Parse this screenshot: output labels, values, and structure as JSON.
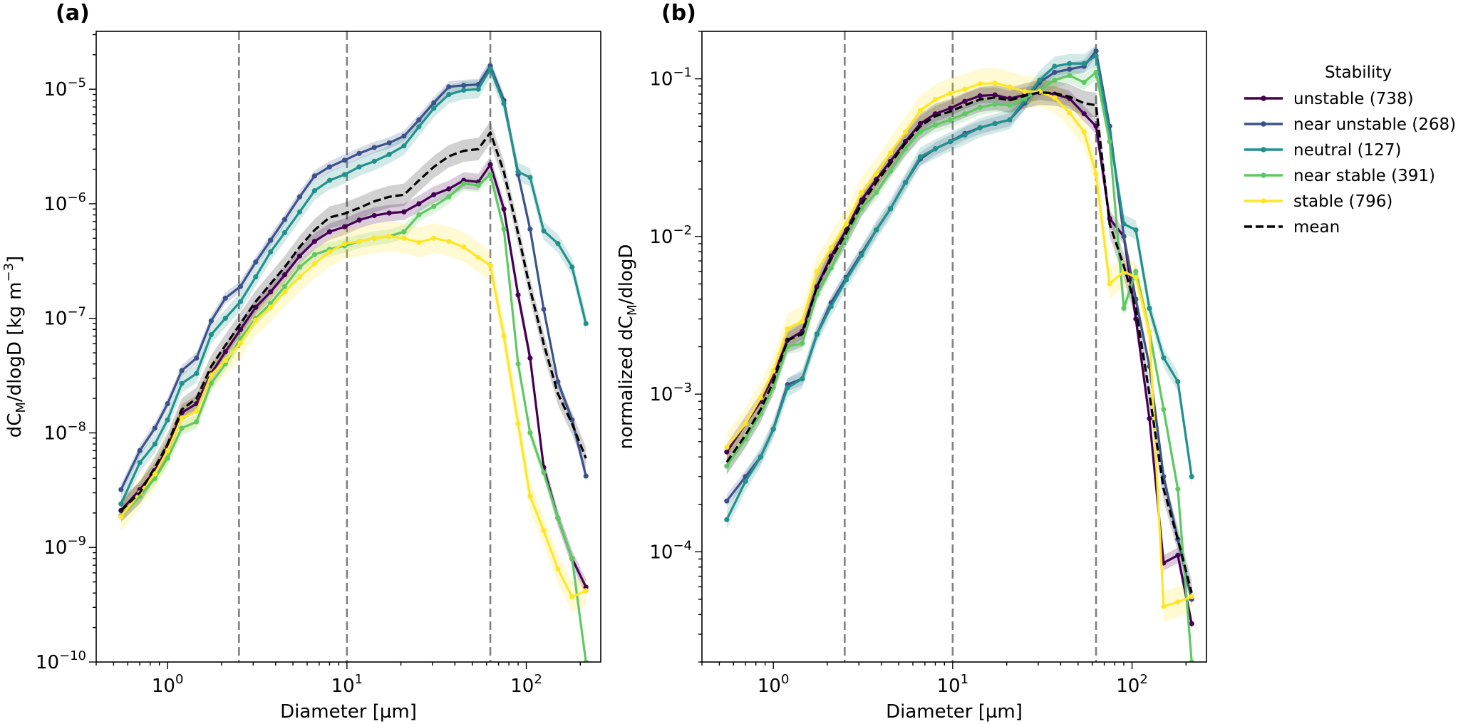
{
  "figure": {
    "panel_a_label": "(a)",
    "panel_b_label": "(b)"
  },
  "legend": {
    "title": "Stability",
    "location": "right of panel (b), top",
    "entries": [
      {
        "label": "unstable  (738)",
        "color": "#440154",
        "dashed": false
      },
      {
        "label": "near unstable  (268)",
        "color": "#3b528b",
        "dashed": false
      },
      {
        "label": "neutral  (127)",
        "color": "#21918c",
        "dashed": false
      },
      {
        "label": "near stable  (391)",
        "color": "#5ec962",
        "dashed": false
      },
      {
        "label": "stable  (796)",
        "color": "#fde725",
        "dashed": false
      },
      {
        "label": "mean",
        "color": "#000000",
        "dashed": true
      }
    ]
  },
  "chart_data": [
    {
      "type": "line",
      "panel": "(a)",
      "xlabel": "Diameter [µm]",
      "ylabel_parts": [
        "dC",
        "M",
        "/dlogD  [kg m",
        "−3",
        "]"
      ],
      "xscale": "log",
      "yscale": "log",
      "xlim": [
        0.4,
        260
      ],
      "ylim": [
        1e-10,
        3.2e-05
      ],
      "xticks": [
        {
          "base": "10",
          "exp": "0",
          "value": 1
        },
        {
          "base": "10",
          "exp": "1",
          "value": 10
        },
        {
          "base": "10",
          "exp": "2",
          "value": 100
        }
      ],
      "yticks": [
        {
          "base": "10",
          "exp": "−10",
          "value": 1e-10
        },
        {
          "base": "10",
          "exp": "−9",
          "value": 1e-09
        },
        {
          "base": "10",
          "exp": "−8",
          "value": 1e-08
        },
        {
          "base": "10",
          "exp": "−7",
          "value": 1e-07
        },
        {
          "base": "10",
          "exp": "−6",
          "value": 1e-06
        },
        {
          "base": "10",
          "exp": "−5",
          "value": 1e-05
        }
      ],
      "vlines": [
        2.5,
        10,
        63
      ],
      "x": [
        0.55,
        0.7,
        0.85,
        1.0,
        1.2,
        1.45,
        1.75,
        2.1,
        2.55,
        3.1,
        3.75,
        4.5,
        5.45,
        6.6,
        8.0,
        9.7,
        11.7,
        14.2,
        17.2,
        20.8,
        25.2,
        30.5,
        37.0,
        44.8,
        54.0,
        63.0,
        75.0,
        90.0,
        105.0,
        125.0,
        150.0,
        180.0,
        215.0
      ],
      "series": [
        {
          "name": "unstable  (738)",
          "color": "#440154",
          "band": 0.18,
          "values": [
            2.1e-09,
            3.2e-09,
            4.7e-09,
            7.5e-09,
            1.5e-08,
            1.8e-08,
            3.3e-08,
            5.1e-08,
            8e-08,
            1.25e-07,
            1.7e-07,
            2.4e-07,
            3.5e-07,
            4.7e-07,
            5.7e-07,
            6.3e-07,
            7.2e-07,
            7.9e-07,
            8.3e-07,
            8.5e-07,
            1e-06,
            1.2e-06,
            1.35e-06,
            1.6e-06,
            1.55e-06,
            2.2e-06,
            9e-07,
            1.6e-07,
            4.5e-08,
            5e-09,
            1.8e-09,
            8e-10,
            4.5e-10
          ]
        },
        {
          "name": "near unstable  (268)",
          "color": "#3b528b",
          "band": 0.12,
          "values": [
            3.2e-09,
            7e-09,
            1.1e-08,
            1.8e-08,
            3.5e-08,
            4.5e-08,
            9.5e-08,
            1.5e-07,
            1.9e-07,
            3.1e-07,
            4.8e-07,
            7.3e-07,
            1.15e-06,
            1.75e-06,
            2.1e-06,
            2.4e-06,
            2.75e-06,
            3.1e-06,
            3.4e-06,
            3.9e-06,
            5.4e-06,
            7.6e-06,
            1.05e-05,
            1.08e-05,
            1.1e-05,
            1.6e-05,
            8e-06,
            1.8e-06,
            6e-07,
            1.2e-07,
            2.8e-08,
            1.3e-08,
            4.2e-09
          ]
        },
        {
          "name": "neutral  (127)",
          "color": "#21918c",
          "band": 0.2,
          "values": [
            2.4e-09,
            5.5e-09,
            8e-09,
            1.3e-08,
            2.7e-08,
            3.3e-08,
            7.2e-08,
            1e-07,
            1.4e-07,
            2.3e-07,
            3.8e-07,
            5.6e-07,
            8.5e-07,
            1.3e-06,
            1.6e-06,
            1.8e-06,
            2.1e-06,
            2.35e-06,
            2.7e-06,
            3.2e-06,
            4.7e-06,
            6.8e-06,
            9e-06,
            9.8e-06,
            1e-05,
            1.5e-05,
            7.5e-06,
            1.9e-06,
            1.7e-06,
            5.8e-07,
            4.5e-07,
            2.8e-07,
            9e-08
          ]
        },
        {
          "name": "near stable  (391)",
          "color": "#5ec962",
          "band": 0.15,
          "values": [
            1.9e-09,
            2.8e-09,
            4e-09,
            6e-09,
            1.1e-08,
            1.25e-08,
            2.7e-08,
            4e-08,
            6.6e-08,
            1e-07,
            1.35e-07,
            1.9e-07,
            2.8e-07,
            3.6e-07,
            4e-07,
            4.3e-07,
            4.7e-07,
            5e-07,
            5.2e-07,
            5.7e-07,
            8e-07,
            9.5e-07,
            1.15e-06,
            1.5e-06,
            1.45e-06,
            1.8e-06,
            6e-07,
            4e-08,
            1e-08,
            4.5e-09,
            1.8e-09,
            8e-10,
            1e-10
          ]
        },
        {
          "name": "stable  (796)",
          "color": "#fde725",
          "band": 0.35,
          "values": [
            1.85e-09,
            3e-09,
            4.4e-09,
            7e-09,
            1.35e-08,
            1.55e-08,
            3.2e-08,
            4.3e-08,
            6.1e-08,
            9.6e-08,
            1.25e-07,
            1.7e-07,
            2.3e-07,
            3e-07,
            3.8e-07,
            4.5e-07,
            4.7e-07,
            5e-07,
            5.2e-07,
            5e-07,
            4.6e-07,
            5e-07,
            4.7e-07,
            4.2e-07,
            3.4e-07,
            2.9e-07,
            7e-08,
            1.2e-08,
            2.8e-09,
            1.4e-09,
            6.5e-10,
            3.7e-10,
            4.2e-10
          ]
        },
        {
          "name": "mean",
          "color": "#000000",
          "dashed": true,
          "band": 0.25,
          "values": [
            2.1e-09,
            3e-09,
            5e-09,
            8e-09,
            1.6e-08,
            2e-08,
            3.8e-08,
            5.8e-08,
            9e-08,
            1.4e-07,
            2e-07,
            2.8e-07,
            4.2e-07,
            5.9e-07,
            7.6e-07,
            8.2e-07,
            9.2e-07,
            1.05e-06,
            1.15e-06,
            1.2e-06,
            1.6e-06,
            2.1e-06,
            2.6e-06,
            2.9e-06,
            3e-06,
            4.2e-06,
            1.9e-06,
            5.5e-07,
            1.8e-07,
            6e-08,
            2.2e-08,
            1.2e-08,
            6e-09
          ]
        }
      ]
    },
    {
      "type": "line",
      "panel": "(b)",
      "xlabel": "Diameter [µm]",
      "ylabel_parts": [
        "normalized dC",
        "M",
        "/dlogD",
        "",
        ""
      ],
      "xscale": "log",
      "yscale": "log",
      "xlim": [
        0.4,
        260
      ],
      "ylim": [
        2e-05,
        0.2
      ],
      "xticks": [
        {
          "base": "10",
          "exp": "0",
          "value": 1
        },
        {
          "base": "10",
          "exp": "1",
          "value": 10
        },
        {
          "base": "10",
          "exp": "2",
          "value": 100
        }
      ],
      "yticks": [
        {
          "base": "10",
          "exp": "−4",
          "value": 0.0001
        },
        {
          "base": "10",
          "exp": "−3",
          "value": 0.001
        },
        {
          "base": "10",
          "exp": "−2",
          "value": 0.01
        },
        {
          "base": "10",
          "exp": "−1",
          "value": 0.1
        }
      ],
      "vlines": [
        2.5,
        10,
        63
      ],
      "x": [
        0.55,
        0.7,
        0.85,
        1.0,
        1.2,
        1.45,
        1.75,
        2.1,
        2.55,
        3.1,
        3.75,
        4.5,
        5.45,
        6.6,
        8.0,
        9.7,
        11.7,
        14.2,
        17.2,
        20.8,
        25.2,
        30.5,
        37.0,
        44.8,
        54.0,
        63.0,
        75.0,
        90.0,
        105.0,
        125.0,
        150.0,
        180.0,
        215.0
      ],
      "series": [
        {
          "name": "unstable  (738)",
          "color": "#440154",
          "band": 0.12,
          "values": [
            0.00043,
            0.00065,
            0.0009,
            0.0013,
            0.0022,
            0.0025,
            0.0048,
            0.0075,
            0.011,
            0.017,
            0.023,
            0.03,
            0.04,
            0.052,
            0.06,
            0.065,
            0.072,
            0.078,
            0.079,
            0.075,
            0.079,
            0.082,
            0.08,
            0.075,
            0.06,
            0.05,
            0.013,
            0.01,
            0.003,
            0.0007,
            8.5e-05,
            9.5e-05,
            3.5e-05
          ]
        },
        {
          "name": "near unstable  (268)",
          "color": "#3b528b",
          "band": 0.1,
          "values": [
            0.00021,
            0.0003,
            0.0004,
            0.0006,
            0.00115,
            0.00125,
            0.0024,
            0.0038,
            0.0055,
            0.0078,
            0.011,
            0.015,
            0.022,
            0.031,
            0.036,
            0.04,
            0.045,
            0.049,
            0.052,
            0.055,
            0.07,
            0.095,
            0.11,
            0.115,
            0.12,
            0.15,
            0.05,
            0.01,
            0.004,
            0.0015,
            0.0003,
            0.00012,
            5e-05
          ]
        },
        {
          "name": "neutral  (127)",
          "color": "#21918c",
          "band": 0.15,
          "values": [
            0.00016,
            0.00028,
            0.0004,
            0.0006,
            0.0011,
            0.00125,
            0.0024,
            0.0036,
            0.0053,
            0.0076,
            0.011,
            0.015,
            0.022,
            0.032,
            0.036,
            0.04,
            0.044,
            0.049,
            0.052,
            0.055,
            0.073,
            0.098,
            0.12,
            0.125,
            0.125,
            0.14,
            0.045,
            0.012,
            0.011,
            0.0035,
            0.0017,
            0.0012,
            0.0003
          ]
        },
        {
          "name": "near stable  (391)",
          "color": "#5ec962",
          "band": 0.12,
          "values": [
            0.00035,
            0.00052,
            0.00075,
            0.0011,
            0.002,
            0.0021,
            0.0043,
            0.0063,
            0.0098,
            0.015,
            0.019,
            0.026,
            0.036,
            0.046,
            0.051,
            0.055,
            0.06,
            0.066,
            0.069,
            0.068,
            0.075,
            0.085,
            0.098,
            0.105,
            0.095,
            0.11,
            0.04,
            0.0035,
            0.006,
            0.0025,
            0.0008,
            0.00025,
            2e-05
          ]
        },
        {
          "name": "stable  (796)",
          "color": "#fde725",
          "band": 0.25,
          "values": [
            0.00046,
            0.00065,
            0.00095,
            0.0014,
            0.0026,
            0.0029,
            0.006,
            0.0085,
            0.012,
            0.019,
            0.025,
            0.034,
            0.046,
            0.063,
            0.074,
            0.081,
            0.086,
            0.093,
            0.094,
            0.089,
            0.083,
            0.083,
            0.076,
            0.061,
            0.046,
            0.025,
            0.005,
            0.006,
            0.0055,
            0.0025,
            4.5e-05,
            4.8e-05,
            5.2e-05
          ]
        },
        {
          "name": "mean",
          "color": "#000000",
          "dashed": true,
          "band": 0.2,
          "values": [
            0.00037,
            0.00055,
            0.0008,
            0.0012,
            0.0022,
            0.0024,
            0.0048,
            0.0072,
            0.0105,
            0.016,
            0.022,
            0.029,
            0.039,
            0.05,
            0.058,
            0.062,
            0.068,
            0.074,
            0.076,
            0.073,
            0.078,
            0.082,
            0.081,
            0.077,
            0.07,
            0.068,
            0.012,
            0.0065,
            0.0035,
            0.001,
            0.00025,
            0.00012,
            5.5e-05
          ]
        }
      ]
    }
  ]
}
